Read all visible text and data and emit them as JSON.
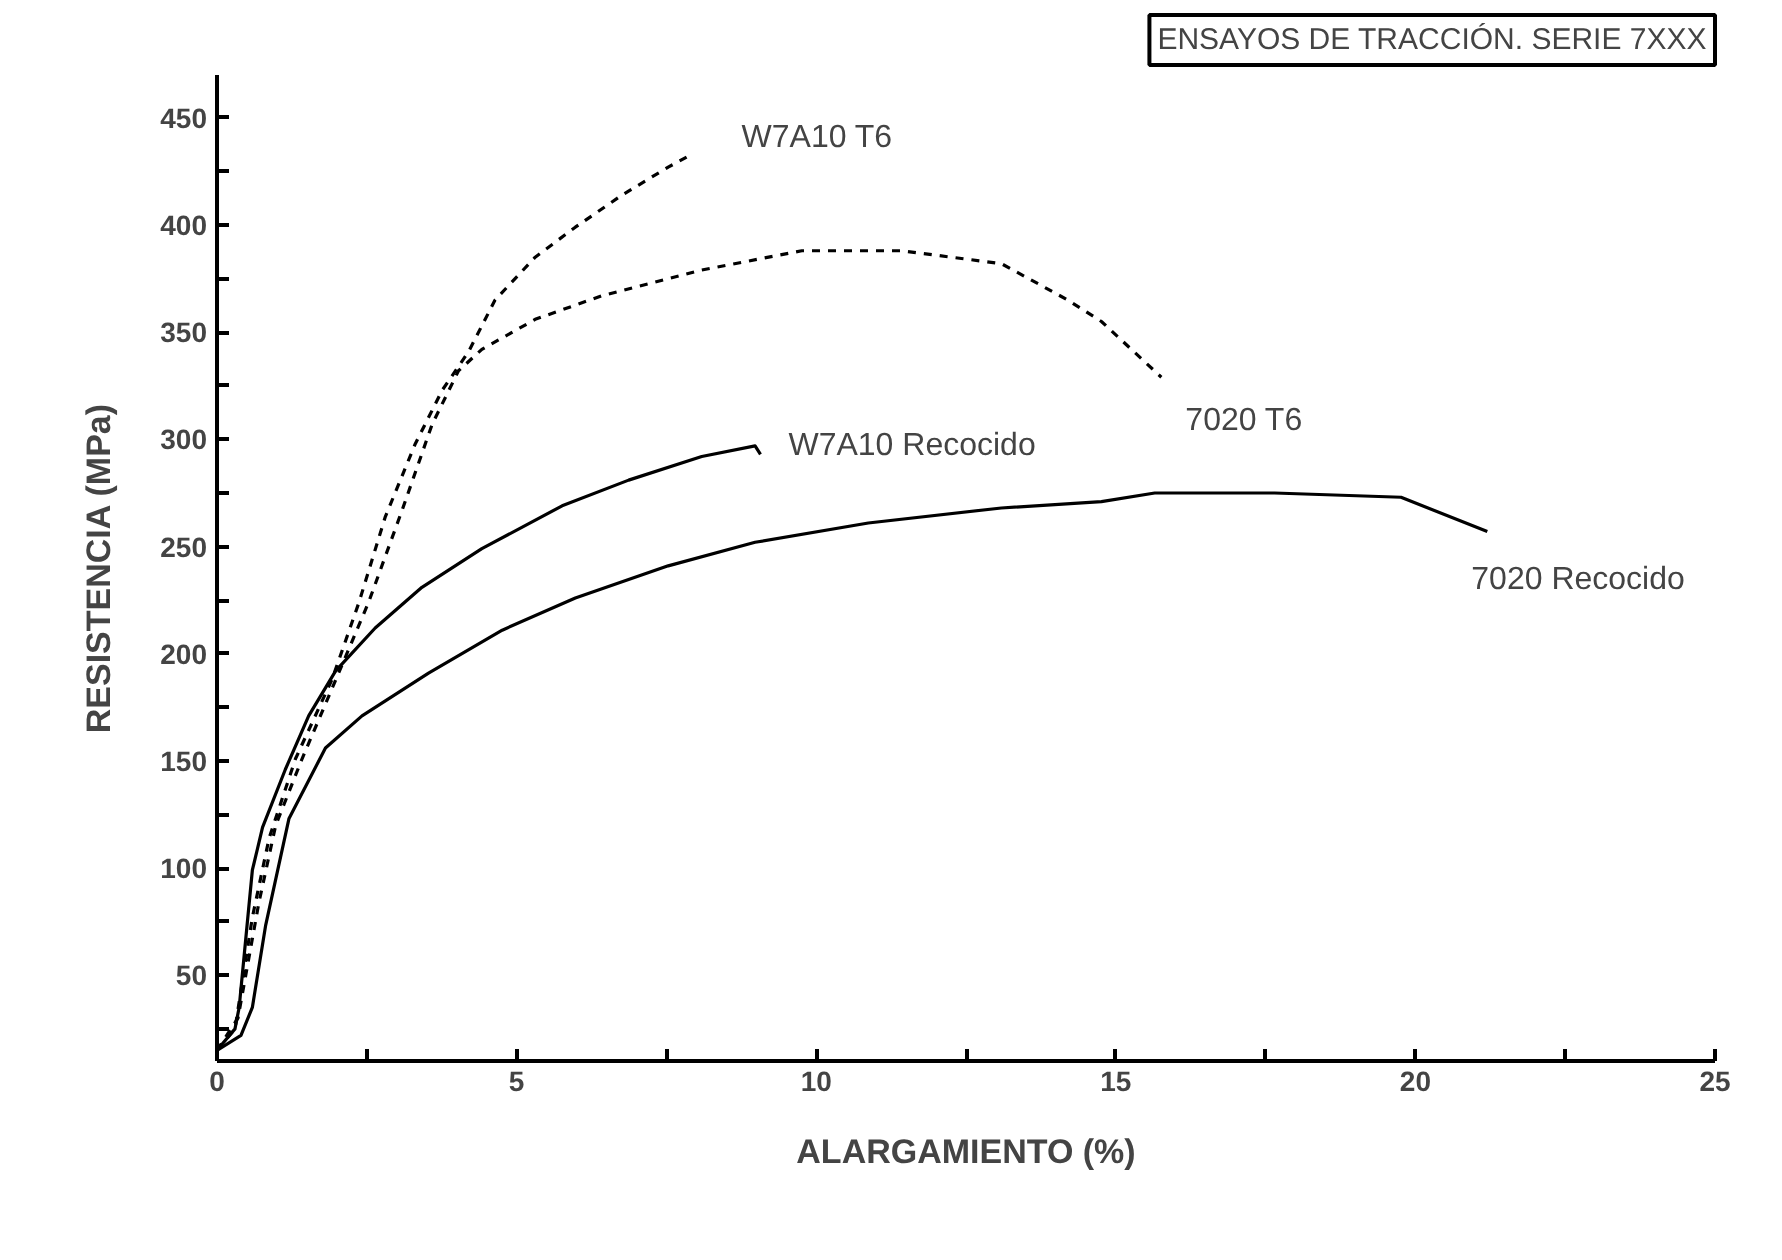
{
  "chart_data": {
    "type": "line",
    "title": "ENSAYOS DE TRACCIÓN. SERIE 7XXX",
    "xlabel": "ALARGAMIENTO (%)",
    "ylabel": "RESISTENCIA (MPa)",
    "xlim": [
      0,
      25
    ],
    "ylim": [
      10,
      470
    ],
    "xticks": [
      0,
      {
        "value": 2.5,
        "label": null
      },
      5,
      {
        "value": 7.5,
        "label": null
      },
      10,
      {
        "value": 12.5,
        "label": null
      },
      15,
      {
        "value": 17.5,
        "label": null
      },
      20,
      {
        "value": 22.5,
        "label": null
      },
      25
    ],
    "yticks": [
      {
        "value": 25,
        "label": null
      },
      50,
      {
        "value": 75,
        "label": null
      },
      100,
      {
        "value": 125,
        "label": null
      },
      150,
      {
        "value": 175,
        "label": null
      },
      200,
      {
        "value": 225,
        "label": null
      },
      250,
      {
        "value": 275,
        "label": null
      },
      300,
      {
        "value": 325,
        "label": null
      },
      350,
      {
        "value": 375,
        "label": null
      },
      400,
      {
        "value": 425,
        "label": null
      },
      450
    ],
    "grid": false,
    "marker": "none",
    "series": [
      {
        "name": "W7A10 T6",
        "color": "#000000",
        "line_style": "dashed",
        "x": [
          0,
          0.3,
          0.59,
          0.87,
          1.31,
          1.92,
          2.37,
          2.81,
          3.31,
          3.76,
          4.2,
          4.64,
          5.31,
          5.98,
          6.76,
          7.53,
          7.92
        ],
        "values": [
          15,
          25,
          77,
          114,
          151,
          188,
          224,
          264,
          298,
          323,
          341,
          365,
          385,
          399,
          414,
          427,
          433
        ]
      },
      {
        "name": "7020 T6",
        "color": "#000000",
        "line_style": "dashed",
        "x": [
          0,
          0.35,
          0.7,
          0.98,
          1.42,
          2.03,
          2.53,
          3.09,
          3.59,
          4.03,
          4.42,
          5.31,
          6.42,
          8.09,
          9.76,
          11.42,
          13.09,
          14.2,
          14.76,
          15.76
        ],
        "values": [
          15,
          30,
          84,
          120,
          151,
          191,
          224,
          267,
          307,
          332,
          342,
          356,
          367,
          379,
          388,
          388,
          382,
          365,
          355,
          329
        ]
      },
      {
        "name": "W7A10 Recocido",
        "color": "#000000",
        "line_style": "solid",
        "x": [
          0,
          0.3,
          0.37,
          0.59,
          0.76,
          1.14,
          1.53,
          1.98,
          2.64,
          3.42,
          4.42,
          5.76,
          6.87,
          8.09,
          8.98,
          9.07
        ],
        "values": [
          15,
          25,
          35,
          99,
          119,
          146,
          171,
          192,
          212,
          231,
          249,
          269,
          281,
          292,
          297,
          293
        ]
      },
      {
        "name": "7020 Recocido",
        "color": "#000000",
        "line_style": "solid",
        "x": [
          0,
          0.4,
          0.59,
          0.81,
          1.2,
          1.81,
          2.42,
          3.53,
          4.76,
          5.98,
          7.53,
          8.98,
          10.87,
          13.09,
          14.76,
          15.65,
          17.65,
          19.76,
          21.2
        ],
        "values": [
          15,
          22,
          35,
          73,
          123,
          156,
          171,
          191,
          211,
          226,
          241,
          252,
          261,
          268,
          271,
          275,
          275,
          273,
          257
        ]
      }
    ]
  }
}
